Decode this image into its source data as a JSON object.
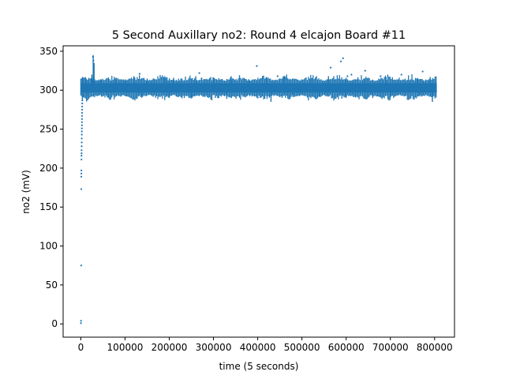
{
  "chart_data": {
    "type": "scatter",
    "title": "5 Second Auxillary no2: Round 4 elcajon Board #11",
    "xlabel": "time (5 seconds)",
    "ylabel": "no2 (mV)",
    "xlim": [
      -40000,
      845000
    ],
    "ylim": [
      -17,
      357
    ],
    "xticks": [
      0,
      100000,
      200000,
      300000,
      400000,
      500000,
      600000,
      700000,
      800000
    ],
    "xtick_labels": [
      "0",
      "100000",
      "200000",
      "300000",
      "400000",
      "500000",
      "600000",
      "700000",
      "800000"
    ],
    "yticks": [
      0,
      50,
      100,
      150,
      200,
      250,
      300,
      350
    ],
    "ytick_labels": [
      "0",
      "50",
      "100",
      "150",
      "200",
      "250",
      "300",
      "350"
    ],
    "grid": false,
    "color": "#1f77b4",
    "series": [
      {
        "band": {
          "x_start": 0,
          "x_end": 805000,
          "center": 303,
          "half_width": 6,
          "bumps": [
            [
              3500,
              317
            ],
            [
              12000,
              315
            ],
            [
              25000,
              320
            ],
            [
              28000,
              345
            ],
            [
              30000,
              335
            ],
            [
              45000,
              314
            ],
            [
              80000,
              316
            ],
            [
              100000,
              314
            ],
            [
              120000,
              318
            ],
            [
              150000,
              315
            ],
            [
              190000,
              318
            ],
            [
              210000,
              316
            ],
            [
              260000,
              318
            ],
            [
              300000,
              316
            ],
            [
              340000,
              318
            ],
            [
              380000,
              314
            ],
            [
              420000,
              317
            ],
            [
              460000,
              316
            ],
            [
              520000,
              315
            ],
            [
              560000,
              318
            ],
            [
              600000,
              316
            ],
            [
              640000,
              314
            ],
            [
              690000,
              317
            ],
            [
              720000,
              316
            ],
            [
              760000,
              315
            ],
            [
              790000,
              317
            ]
          ],
          "dips": [
            [
              3500,
              288
            ],
            [
              15000,
              293
            ],
            [
              60000,
              291
            ],
            [
              140000,
              292
            ],
            [
              200000,
              290
            ],
            [
              250000,
              291
            ],
            [
              330000,
              289
            ],
            [
              430000,
              285
            ],
            [
              480000,
              291
            ],
            [
              540000,
              292
            ],
            [
              600000,
              290
            ],
            [
              660000,
              290
            ],
            [
              700000,
              291
            ],
            [
              765000,
              292
            ],
            [
              795000,
              285
            ]
          ]
        },
        "points": [
          {
            "x": 200,
            "y": 1
          },
          {
            "x": 500,
            "y": 4
          },
          {
            "x": 900,
            "y": 75
          },
          {
            "x": 1000,
            "y": 173
          },
          {
            "x": 1100,
            "y": 189
          },
          {
            "x": 1200,
            "y": 193
          },
          {
            "x": 1300,
            "y": 197
          },
          {
            "x": 1500,
            "y": 211
          },
          {
            "x": 1600,
            "y": 216
          },
          {
            "x": 1700,
            "y": 219
          },
          {
            "x": 1800,
            "y": 223
          },
          {
            "x": 1900,
            "y": 228
          },
          {
            "x": 2000,
            "y": 233
          },
          {
            "x": 2100,
            "y": 238
          },
          {
            "x": 2200,
            "y": 243
          },
          {
            "x": 2300,
            "y": 247
          },
          {
            "x": 2400,
            "y": 251
          },
          {
            "x": 2500,
            "y": 255
          },
          {
            "x": 2600,
            "y": 259
          },
          {
            "x": 2700,
            "y": 263
          },
          {
            "x": 2800,
            "y": 267
          },
          {
            "x": 2900,
            "y": 271
          },
          {
            "x": 3000,
            "y": 275
          },
          {
            "x": 3100,
            "y": 279
          },
          {
            "x": 3200,
            "y": 283
          },
          {
            "x": 3300,
            "y": 287
          },
          {
            "x": 27500,
            "y": 343
          },
          {
            "x": 28500,
            "y": 338
          },
          {
            "x": 88000,
            "y": 309
          },
          {
            "x": 133000,
            "y": 321
          },
          {
            "x": 268000,
            "y": 322
          },
          {
            "x": 273000,
            "y": 315
          },
          {
            "x": 398000,
            "y": 331
          },
          {
            "x": 445000,
            "y": 318
          },
          {
            "x": 565000,
            "y": 329
          },
          {
            "x": 573000,
            "y": 312
          },
          {
            "x": 588000,
            "y": 337
          },
          {
            "x": 593000,
            "y": 341
          },
          {
            "x": 603000,
            "y": 318
          },
          {
            "x": 612000,
            "y": 320
          },
          {
            "x": 643000,
            "y": 325
          },
          {
            "x": 678000,
            "y": 318
          },
          {
            "x": 725000,
            "y": 320
          },
          {
            "x": 773000,
            "y": 324
          }
        ]
      }
    ]
  }
}
